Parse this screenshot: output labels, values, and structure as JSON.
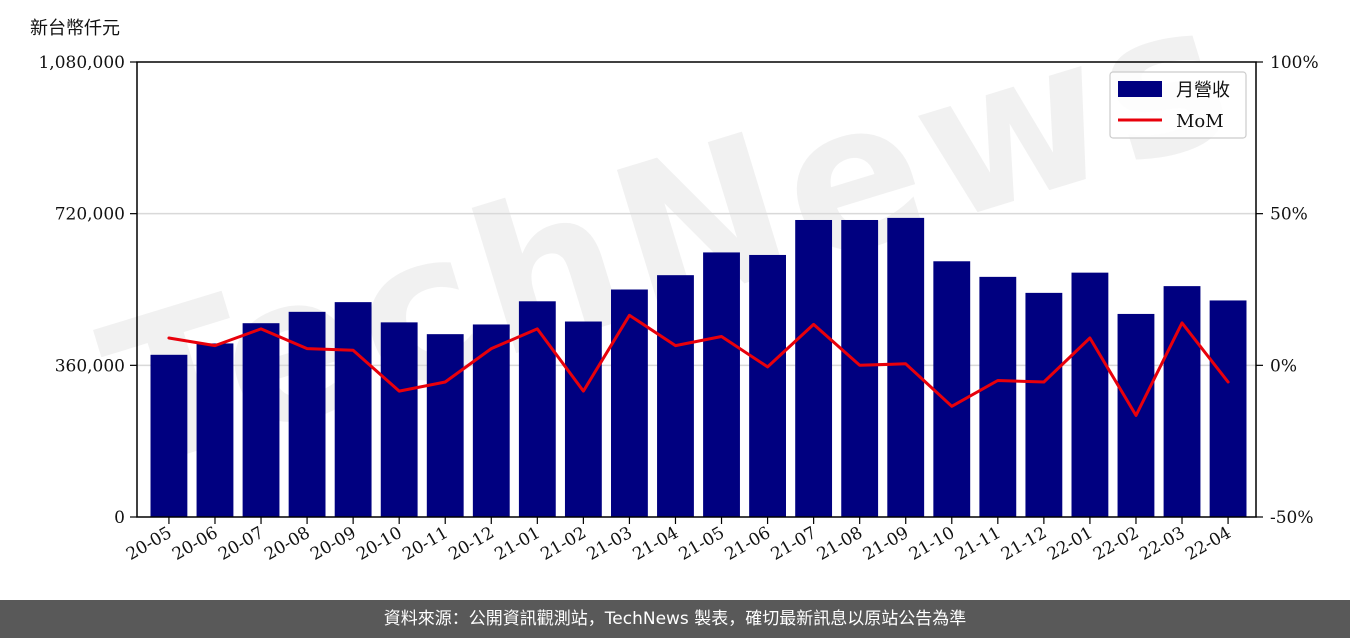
{
  "chart": {
    "unit_label": "新台幣仟元",
    "watermark": "TechNews",
    "footer": "資料來源：公開資訊觀測站，TechNews 製表，確切最新訊息以原站公告為準"
  },
  "colors": {
    "bar": "#000080",
    "line": "#e8000b",
    "grid": "#d9d9d9",
    "footer_bg": "#595959"
  },
  "chart_data": {
    "type": "bar",
    "categories": [
      "20-05",
      "20-06",
      "20-07",
      "20-08",
      "20-09",
      "20-10",
      "20-11",
      "20-12",
      "21-01",
      "21-02",
      "21-03",
      "21-04",
      "21-05",
      "21-06",
      "21-07",
      "21-08",
      "21-09",
      "21-10",
      "21-11",
      "21-12",
      "22-01",
      "22-02",
      "22-03",
      "22-04"
    ],
    "series": [
      {
        "name": "月營收",
        "type": "bar",
        "axis": "left",
        "values": [
          385000,
          412000,
          460000,
          487000,
          510000,
          462000,
          434000,
          457000,
          512000,
          464000,
          540000,
          574000,
          628000,
          622000,
          705000,
          705000,
          710000,
          607000,
          570000,
          532000,
          580000,
          482000,
          548000,
          514000
        ]
      },
      {
        "name": "MoM",
        "type": "line",
        "axis": "right",
        "values": [
          9,
          6.5,
          12,
          5.5,
          5,
          -8.5,
          -5.5,
          5.5,
          12,
          -8.5,
          16.5,
          6.5,
          9.5,
          -0.5,
          13.5,
          0,
          0.5,
          -13.5,
          -5,
          -5.5,
          9,
          -16.5,
          14,
          -5.5
        ]
      }
    ],
    "y_left": {
      "ylim": [
        0,
        1080000
      ],
      "ticks": [
        0,
        360000,
        720000,
        1080000
      ],
      "tick_labels": [
        "0",
        "360,000",
        "720,000",
        "1,080,000"
      ]
    },
    "y_right": {
      "ylim": [
        -50,
        100
      ],
      "ticks": [
        -50,
        0,
        50,
        100
      ],
      "tick_labels": [
        "-50%",
        "0%",
        "50%",
        "100%"
      ]
    },
    "grid": "horizontal",
    "legend_position": "top-right"
  }
}
